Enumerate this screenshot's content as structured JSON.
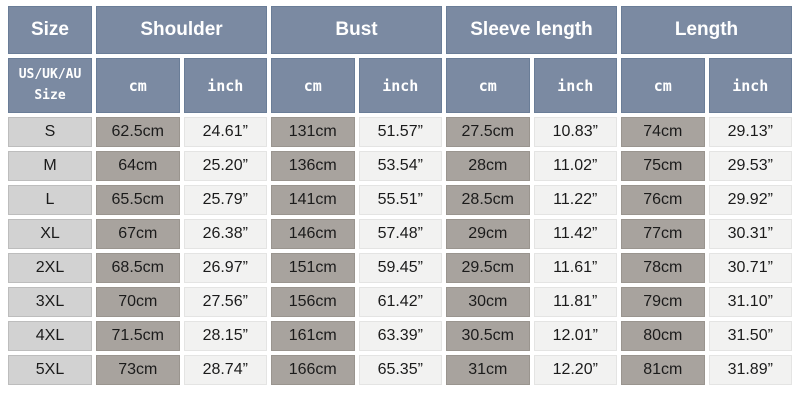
{
  "chart_data": {
    "type": "table",
    "title": "Garment size chart",
    "header_groups": [
      {
        "label": "Size"
      },
      {
        "label": "Shoulder"
      },
      {
        "label": "Bust"
      },
      {
        "label": "Sleeve length"
      },
      {
        "label": "Length"
      }
    ],
    "subheader": {
      "size_label": "US/UK/AU\nSize",
      "units": [
        "cm",
        "inch",
        "cm",
        "inch",
        "cm",
        "inch",
        "cm",
        "inch"
      ]
    },
    "columns": [
      "US/UK/AU Size",
      "Shoulder cm",
      "Shoulder inch",
      "Bust cm",
      "Bust inch",
      "Sleeve length cm",
      "Sleeve length inch",
      "Length cm",
      "Length inch"
    ],
    "rows": [
      {
        "cells": [
          "S",
          "62.5cm",
          "24.61”",
          "131cm",
          "51.57”",
          "27.5cm",
          "10.83”",
          "74cm",
          "29.13”"
        ]
      },
      {
        "cells": [
          "M",
          "64cm",
          "25.20”",
          "136cm",
          "53.54”",
          "28cm",
          "11.02”",
          "75cm",
          "29.53”"
        ]
      },
      {
        "cells": [
          "L",
          "65.5cm",
          "25.79”",
          "141cm",
          "55.51”",
          "28.5cm",
          "11.22”",
          "76cm",
          "29.92”"
        ]
      },
      {
        "cells": [
          "XL",
          "67cm",
          "26.38”",
          "146cm",
          "57.48”",
          "29cm",
          "11.42”",
          "77cm",
          "30.31”"
        ]
      },
      {
        "cells": [
          "2XL",
          "68.5cm",
          "26.97”",
          "151cm",
          "59.45”",
          "29.5cm",
          "11.61”",
          "78cm",
          "30.71”"
        ]
      },
      {
        "cells": [
          "3XL",
          "70cm",
          "27.56”",
          "156cm",
          "61.42”",
          "30cm",
          "11.81”",
          "79cm",
          "31.10”"
        ]
      },
      {
        "cells": [
          "4XL",
          "71.5cm",
          "28.15”",
          "161cm",
          "63.39”",
          "30.5cm",
          "12.01”",
          "80cm",
          "31.50”"
        ]
      },
      {
        "cells": [
          "5XL",
          "73cm",
          "28.74”",
          "166cm",
          "65.35”",
          "31cm",
          "12.20”",
          "81cm",
          "31.89”"
        ]
      }
    ]
  },
  "colors": {
    "header_bg": "#7b8aa2",
    "header_border": "#6a7d97",
    "size_col_bg": "#d2d2d2",
    "cm_col_bg": "#a8a39e",
    "inch_col_bg": "#f2f2f1",
    "text": "#1b1b1b",
    "header_text": "#ffffff",
    "page_bg": "#ffffff"
  }
}
